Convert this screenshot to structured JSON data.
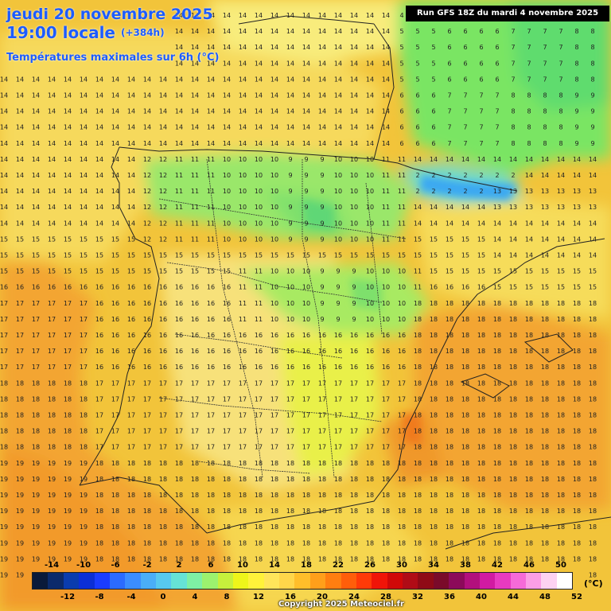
{
  "title": {
    "date": "jeudi 20 novembre 2025",
    "time": "19:00 locale",
    "offset": "(+384h)",
    "field": "Températures maximales sur 6h (°C)"
  },
  "run_label": "Run GFS 18Z du mardi 4 novembre 2025",
  "copyright": "Copyright 2025 Meteociel.fr",
  "legend": {
    "unit": "(°C)",
    "top_ticks": [
      "-14",
      "-10",
      "-6",
      "-2",
      "2",
      "6",
      "10",
      "14",
      "18",
      "22",
      "26",
      "30",
      "34",
      "38",
      "42",
      "46",
      "50"
    ],
    "bottom_ticks": [
      "-12",
      "-8",
      "-4",
      "0",
      "4",
      "8",
      "12",
      "16",
      "20",
      "24",
      "28",
      "32",
      "36",
      "40",
      "44",
      "48",
      "52"
    ],
    "colors": [
      "#0a1a3a",
      "#0b2a6b",
      "#0a3cae",
      "#0b2fd6",
      "#1a3cff",
      "#2b6bff",
      "#3b8dff",
      "#4aaef8",
      "#57c9ef",
      "#66e3d6",
      "#7ef0a4",
      "#9cf26e",
      "#c6f03c",
      "#eef51a",
      "#fff23a",
      "#ffe55a",
      "#ffd64a",
      "#ffbe2a",
      "#ff9f1a",
      "#ff7e10",
      "#ff5e0a",
      "#ff3a08",
      "#f01408",
      "#d00808",
      "#b00c16",
      "#8f0a16",
      "#7a0a2a",
      "#8c0a5a",
      "#b2107d",
      "#d11aa2",
      "#e83ac0",
      "#f66ad8",
      "#fb9ee6",
      "#fdd2f2",
      "#ffffff"
    ]
  }
}
